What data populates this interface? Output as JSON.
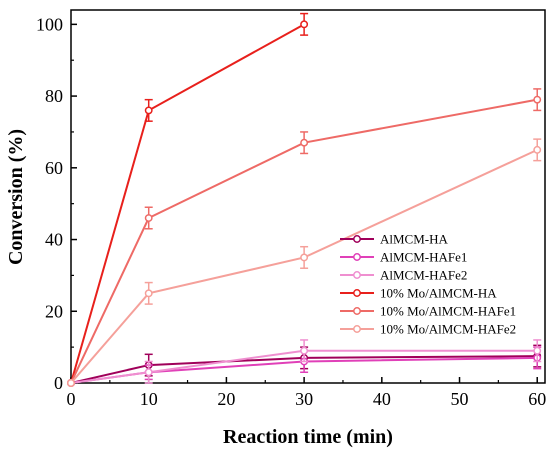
{
  "chart_data": {
    "type": "line",
    "title": "",
    "xlabel": "Reaction time (min)",
    "ylabel": "Conversion (%)",
    "xlim": [
      0,
      61
    ],
    "ylim": [
      0,
      104
    ],
    "xticks": [
      0,
      10,
      20,
      30,
      40,
      50,
      60
    ],
    "yticks": [
      0,
      20,
      40,
      60,
      80,
      100
    ],
    "x": [
      0,
      10,
      30,
      60
    ],
    "legend_position": "center-right",
    "grid": false,
    "series": [
      {
        "name": "AlMCM-HA",
        "color": "#a0005a",
        "x": [
          0,
          10,
          30,
          60
        ],
        "y": [
          0,
          5,
          7,
          7.5
        ],
        "err": [
          0,
          3,
          3,
          3
        ]
      },
      {
        "name": "AlMCM-HAFe1",
        "color": "#e040b8",
        "x": [
          0,
          10,
          30,
          60
        ],
        "y": [
          0,
          3,
          6,
          7
        ],
        "err": [
          0,
          2,
          3,
          3
        ]
      },
      {
        "name": "AlMCM-HAFe2",
        "color": "#ef8fd0",
        "x": [
          0,
          10,
          30,
          60
        ],
        "y": [
          0,
          3,
          9,
          9
        ],
        "err": [
          0,
          3,
          3,
          3
        ]
      },
      {
        "name": "10% Mo/AlMCM-HA",
        "color": "#e8201c",
        "x": [
          0,
          10,
          30
        ],
        "y": [
          0,
          76,
          100
        ],
        "err": [
          0,
          3,
          3
        ]
      },
      {
        "name": "10% Mo/AlMCM-HAFe1",
        "color": "#ee6a66",
        "x": [
          0,
          10,
          30,
          60
        ],
        "y": [
          0,
          46,
          67,
          79
        ],
        "err": [
          0,
          3,
          3,
          3
        ]
      },
      {
        "name": "10% Mo/AlMCM-HAFe2",
        "color": "#f5a09a",
        "x": [
          0,
          10,
          30,
          60
        ],
        "y": [
          0,
          25,
          35,
          65
        ],
        "err": [
          0,
          3,
          3,
          3
        ]
      }
    ]
  }
}
